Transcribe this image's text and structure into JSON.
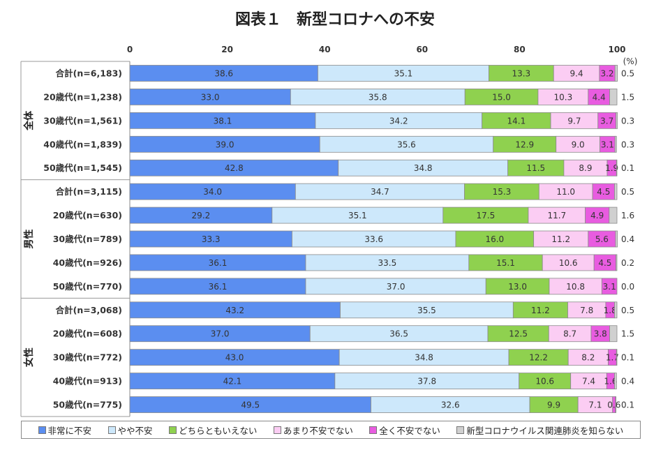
{
  "chart_data": {
    "type": "bar",
    "stacked": true,
    "orientation": "horizontal",
    "title": "図表１　新型コロナへの不安",
    "unit": "(%)",
    "xlim": [
      0,
      100
    ],
    "xticks": [
      0,
      20,
      40,
      60,
      80,
      100
    ],
    "groups": [
      {
        "label": "全体",
        "rows": [
          0,
          1,
          2,
          3,
          4
        ]
      },
      {
        "label": "男性",
        "rows": [
          5,
          6,
          7,
          8,
          9
        ]
      },
      {
        "label": "女性",
        "rows": [
          10,
          11,
          12,
          13,
          14
        ]
      }
    ],
    "categories": [
      "合計(n=6,183)",
      "20歳代(n=1,238)",
      "30歳代(n=1,561)",
      "40歳代(n=1,839)",
      "50歳代(n=1,545)",
      "合計(n=3,115)",
      "20歳代(n=630)",
      "30歳代(n=789)",
      "40歳代(n=926)",
      "50歳代(n=770)",
      "合計(n=3,068)",
      "20歳代(n=608)",
      "30歳代(n=772)",
      "40歳代(n=913)",
      "50歳代(n=775)"
    ],
    "series": [
      {
        "name": "非常に不安",
        "color": "#5b8ef0",
        "values": [
          38.6,
          33.0,
          38.1,
          39.0,
          42.8,
          34.0,
          29.2,
          33.3,
          36.1,
          36.1,
          43.2,
          37.0,
          43.0,
          42.1,
          49.5
        ]
      },
      {
        "name": "やや不安",
        "color": "#cde8fb",
        "values": [
          35.1,
          35.8,
          34.2,
          35.6,
          34.8,
          34.7,
          35.1,
          33.6,
          33.5,
          37.0,
          35.5,
          36.5,
          34.8,
          37.8,
          32.6
        ]
      },
      {
        "name": "どちらともいえない",
        "color": "#8fd14f",
        "values": [
          13.3,
          15.0,
          14.1,
          12.9,
          11.5,
          15.3,
          17.5,
          16.0,
          15.1,
          13.0,
          11.2,
          12.5,
          12.2,
          10.6,
          9.9
        ]
      },
      {
        "name": "あまり不安でない",
        "color": "#fbcdf3",
        "values": [
          9.4,
          10.3,
          9.7,
          9.0,
          8.9,
          11.0,
          11.7,
          11.2,
          10.6,
          10.8,
          7.8,
          8.7,
          8.2,
          7.4,
          7.1
        ]
      },
      {
        "name": "全く不安でない",
        "color": "#e85ce0",
        "values": [
          3.2,
          4.4,
          3.7,
          3.1,
          1.9,
          4.5,
          4.9,
          5.6,
          4.5,
          3.1,
          1.8,
          3.8,
          1.7,
          1.6,
          0.6
        ]
      },
      {
        "name": "新型コロナウイルス関連肺炎を知らない",
        "color": "#d0d0d0",
        "values": [
          0.5,
          1.5,
          0.3,
          0.3,
          0.1,
          0.5,
          1.6,
          0.4,
          0.2,
          0.0,
          0.5,
          1.5,
          0.1,
          0.4,
          0.1
        ]
      }
    ],
    "legend_position": "bottom"
  }
}
